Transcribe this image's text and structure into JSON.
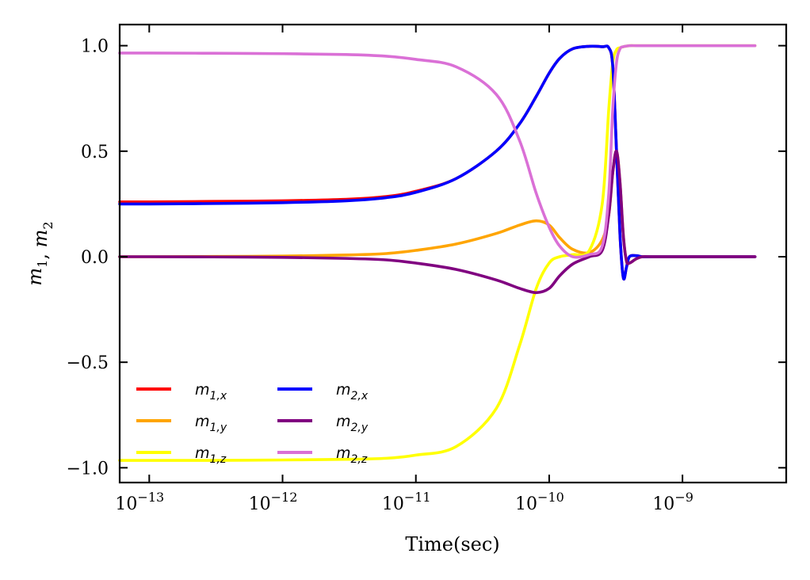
{
  "chart_data": {
    "type": "line",
    "xscale": "log",
    "xlabel": "Time(sec)",
    "ylabel": "m1, m2",
    "xlim": [
      6e-14,
      6e-09
    ],
    "ylim": [
      -1.07,
      1.1
    ],
    "grid": false,
    "legend_position": "lower-left",
    "x_ticks": [
      {
        "value": 1e-13,
        "label": "10−13"
      },
      {
        "value": 1e-12,
        "label": "10−12"
      },
      {
        "value": 1e-11,
        "label": "10−11"
      },
      {
        "value": 1e-10,
        "label": "10−10"
      },
      {
        "value": 1e-09,
        "label": "10−9"
      }
    ],
    "y_ticks": [
      {
        "value": 1.0,
        "label": "1.0"
      },
      {
        "value": 0.5,
        "label": "0.5"
      },
      {
        "value": 0.0,
        "label": "0.0"
      },
      {
        "value": -0.5,
        "label": "−0.5"
      },
      {
        "value": -1.0,
        "label": "−1.0"
      }
    ],
    "x": [
      6e-14,
      1e-13,
      3e-13,
      1e-12,
      3e-12,
      6e-12,
      1e-11,
      2e-11,
      4e-11,
      6e-11,
      8e-11,
      1e-10,
      1.2e-10,
      1.5e-10,
      2e-10,
      2.5e-10,
      2.8e-10,
      3e-10,
      3.2e-10,
      3.4e-10,
      3.6e-10,
      3.8e-10,
      4e-10,
      4.5e-10,
      5e-10,
      6e-10,
      1e-09,
      2e-09,
      3.5e-09
    ],
    "series": [
      {
        "name": "m1,x",
        "color": "#ff0000",
        "values": [
          0.26,
          0.26,
          0.262,
          0.265,
          0.272,
          0.285,
          0.31,
          0.37,
          0.5,
          0.63,
          0.76,
          0.87,
          0.94,
          0.985,
          0.997,
          0.995,
          0.99,
          0.9,
          0.5,
          0.1,
          -0.1,
          -0.05,
          0.0,
          0.005,
          0.0,
          0.0,
          0.0,
          0.0,
          0.0
        ]
      },
      {
        "name": "m1,y",
        "color": "#ffa500",
        "values": [
          0.0,
          0.0,
          0.001,
          0.003,
          0.008,
          0.015,
          0.03,
          0.06,
          0.11,
          0.15,
          0.17,
          0.15,
          0.09,
          0.035,
          0.02,
          0.08,
          0.2,
          0.4,
          0.5,
          0.35,
          0.1,
          -0.02,
          -0.03,
          -0.01,
          0.0,
          0.0,
          0.0,
          0.0,
          0.0
        ]
      },
      {
        "name": "m1,z",
        "color": "#ffff00",
        "values": [
          -0.965,
          -0.965,
          -0.965,
          -0.963,
          -0.96,
          -0.955,
          -0.94,
          -0.9,
          -0.72,
          -0.42,
          -0.15,
          -0.03,
          0.0,
          0.01,
          0.03,
          0.25,
          0.7,
          0.92,
          0.98,
          0.99,
          0.995,
          0.998,
          1.0,
          1.0,
          1.0,
          1.0,
          1.0,
          1.0,
          1.0
        ]
      },
      {
        "name": "m2,x",
        "color": "#0000ff",
        "values": [
          0.25,
          0.25,
          0.252,
          0.256,
          0.265,
          0.28,
          0.305,
          0.37,
          0.5,
          0.63,
          0.76,
          0.87,
          0.94,
          0.985,
          0.997,
          0.995,
          0.99,
          0.9,
          0.5,
          0.1,
          -0.1,
          -0.05,
          0.0,
          0.005,
          0.0,
          0.0,
          0.0,
          0.0,
          0.0
        ]
      },
      {
        "name": "m2,y",
        "color": "#800080",
        "values": [
          0.0,
          0.0,
          -0.001,
          -0.003,
          -0.008,
          -0.015,
          -0.03,
          -0.06,
          -0.11,
          -0.15,
          -0.17,
          -0.15,
          -0.09,
          -0.035,
          0.0,
          0.03,
          0.2,
          0.4,
          0.5,
          0.35,
          0.1,
          -0.02,
          -0.03,
          -0.01,
          0.0,
          0.0,
          0.0,
          0.0,
          0.0
        ]
      },
      {
        "name": "m2,z",
        "color": "#da70d6",
        "values": [
          0.965,
          0.965,
          0.964,
          0.962,
          0.958,
          0.95,
          0.935,
          0.9,
          0.77,
          0.55,
          0.3,
          0.14,
          0.05,
          0.0,
          0.01,
          0.05,
          0.3,
          0.7,
          0.92,
          0.985,
          0.995,
          0.998,
          1.0,
          1.0,
          1.0,
          1.0,
          1.0,
          1.0,
          1.0
        ]
      }
    ]
  }
}
